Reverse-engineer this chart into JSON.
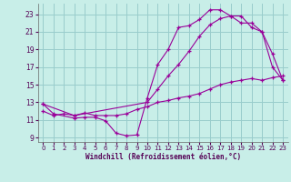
{
  "background_color": "#c8eee8",
  "grid_color": "#99cccc",
  "line_color": "#990099",
  "xlabel": "Windchill (Refroidissement éolien,°C)",
  "xlim": [
    -0.5,
    23.5
  ],
  "ylim": [
    8.5,
    24.2
  ],
  "yticks": [
    9,
    11,
    13,
    15,
    17,
    19,
    21,
    23
  ],
  "xticks": [
    0,
    1,
    2,
    3,
    4,
    5,
    6,
    7,
    8,
    9,
    10,
    11,
    12,
    13,
    14,
    15,
    16,
    17,
    18,
    19,
    20,
    21,
    22,
    23
  ],
  "s1_x": [
    0,
    1,
    3,
    4,
    5,
    6,
    7,
    8,
    9,
    10,
    11,
    12,
    13,
    14,
    15,
    16,
    17,
    18,
    19,
    20,
    21,
    22,
    23
  ],
  "s1_y": [
    12.8,
    11.7,
    11.2,
    11.3,
    11.3,
    10.9,
    9.5,
    9.2,
    9.3,
    13.5,
    17.3,
    19.0,
    21.5,
    21.7,
    22.4,
    23.5,
    23.5,
    22.8,
    22.0,
    22.0,
    21.0,
    17.0,
    15.5
  ],
  "s2_x": [
    0,
    3,
    10,
    11,
    12,
    13,
    14,
    15,
    16,
    17,
    18,
    19,
    20,
    21,
    22,
    23
  ],
  "s2_y": [
    12.8,
    11.5,
    13.0,
    14.5,
    16.0,
    17.3,
    18.8,
    20.5,
    21.8,
    22.5,
    22.8,
    22.8,
    21.5,
    21.0,
    18.5,
    15.5
  ],
  "s3_x": [
    0,
    1,
    2,
    3,
    4,
    5,
    6,
    7,
    8,
    9,
    10,
    11,
    12,
    13,
    14,
    15,
    16,
    17,
    18,
    19,
    20,
    21,
    22,
    23
  ],
  "s3_y": [
    12.0,
    11.5,
    11.7,
    11.5,
    11.8,
    11.5,
    11.5,
    11.5,
    11.7,
    12.2,
    12.5,
    13.0,
    13.2,
    13.5,
    13.7,
    14.0,
    14.5,
    15.0,
    15.3,
    15.5,
    15.7,
    15.5,
    15.8,
    16.0
  ]
}
